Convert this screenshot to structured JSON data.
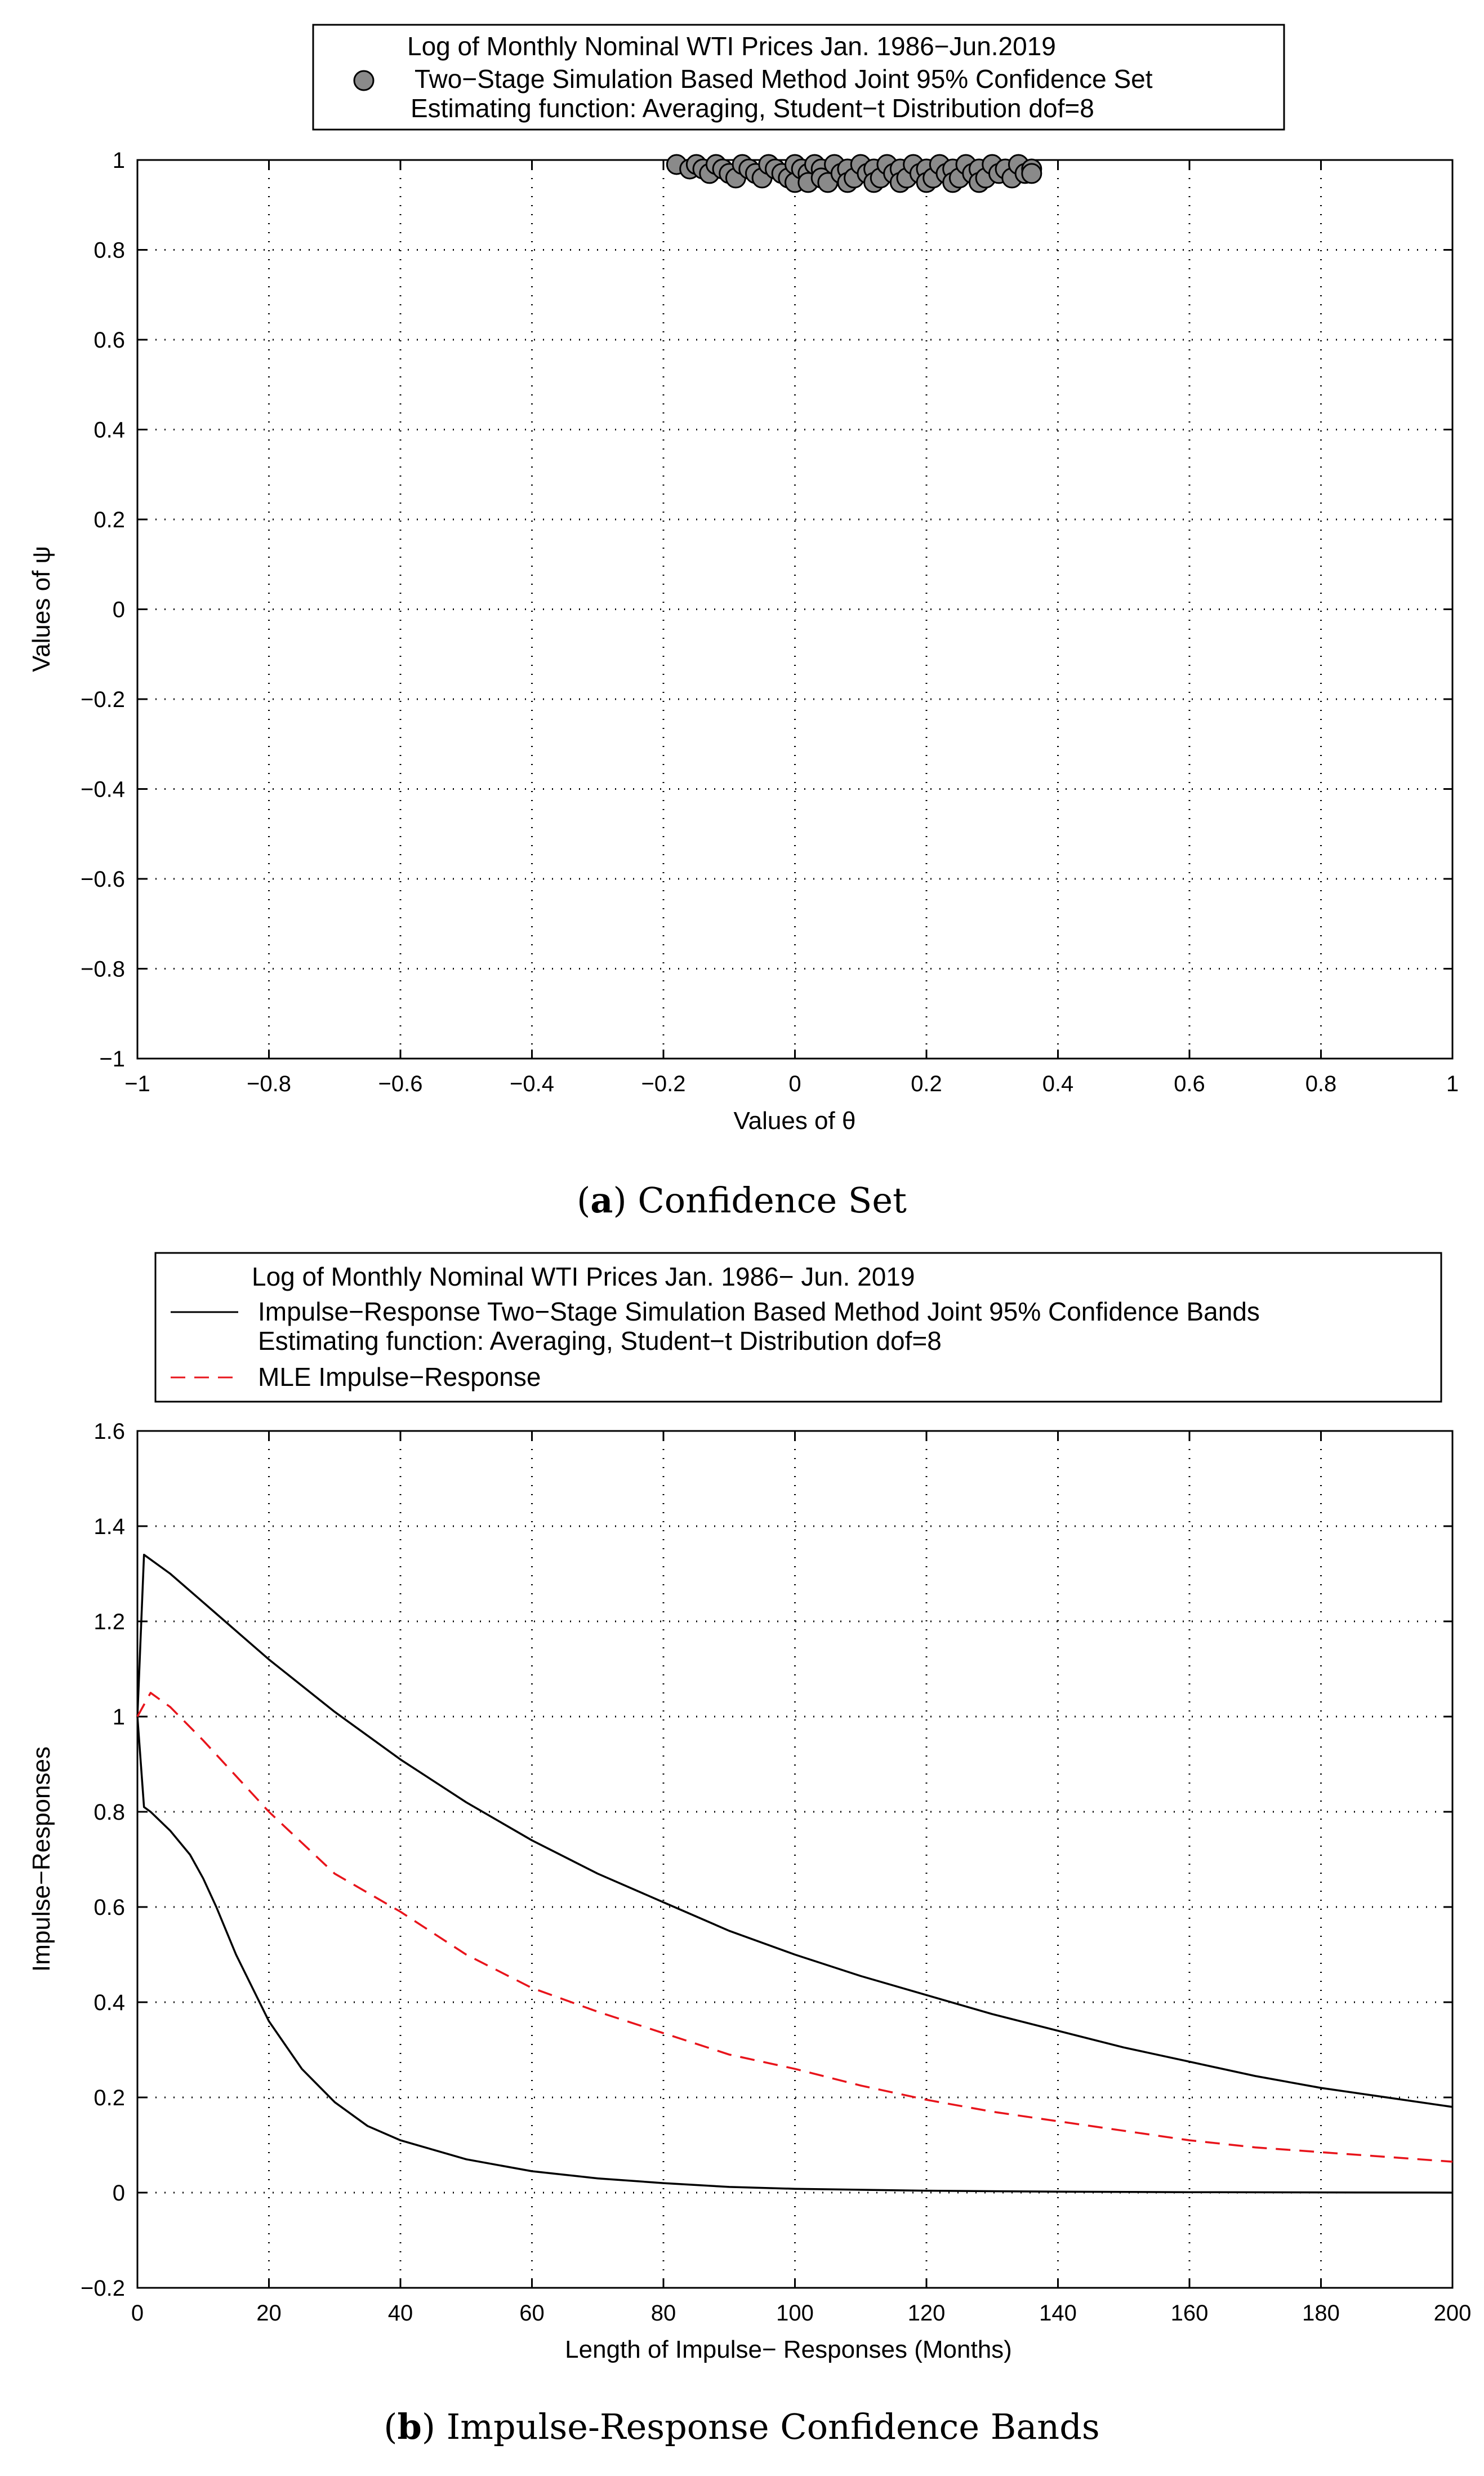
{
  "chart_data": [
    {
      "type": "scatter",
      "title": "Log of Monthly Nominal WTI Prices Jan. 1986−Jun.2019",
      "legend": [
        "Two−Stage Simulation Based Method Joint 95% Confidence Set",
        "Estimating function: Averaging, Student−t Distribution dof=8"
      ],
      "legend_position": "top",
      "xlabel": "Values of θ",
      "ylabel": "Values of ψ",
      "xlim": [
        -1,
        1
      ],
      "ylim": [
        -1,
        1
      ],
      "xticks": [
        -1,
        -0.8,
        -0.6,
        -0.4,
        -0.2,
        0,
        0.2,
        0.4,
        0.6,
        0.8,
        1
      ],
      "yticks": [
        -1,
        -0.8,
        -0.6,
        -0.4,
        -0.2,
        0,
        0.2,
        0.4,
        0.6,
        0.8,
        1
      ],
      "xtick_labels": [
        "−1",
        "−0.8",
        "−0.6",
        "−0.4",
        "−0.2",
        "0",
        "0.2",
        "0.4",
        "0.6",
        "0.8",
        "1"
      ],
      "ytick_labels": [
        "−1",
        "−0.8",
        "−0.6",
        "−0.4",
        "−0.2",
        "0",
        "0.2",
        "0.4",
        "0.6",
        "0.8",
        "1"
      ],
      "grid": true,
      "points": [
        [
          -0.18,
          0.99
        ],
        [
          -0.16,
          0.98
        ],
        [
          -0.15,
          0.99
        ],
        [
          -0.14,
          0.98
        ],
        [
          -0.13,
          0.97
        ],
        [
          -0.12,
          0.99
        ],
        [
          -0.11,
          0.98
        ],
        [
          -0.1,
          0.97
        ],
        [
          -0.09,
          0.96
        ],
        [
          -0.08,
          0.99
        ],
        [
          -0.07,
          0.98
        ],
        [
          -0.06,
          0.97
        ],
        [
          -0.05,
          0.96
        ],
        [
          -0.04,
          0.99
        ],
        [
          -0.03,
          0.98
        ],
        [
          -0.02,
          0.97
        ],
        [
          -0.01,
          0.96
        ],
        [
          0.0,
          0.99
        ],
        [
          0.0,
          0.95
        ],
        [
          0.01,
          0.98
        ],
        [
          0.02,
          0.97
        ],
        [
          0.02,
          0.95
        ],
        [
          0.03,
          0.99
        ],
        [
          0.04,
          0.98
        ],
        [
          0.04,
          0.96
        ],
        [
          0.05,
          0.95
        ],
        [
          0.06,
          0.99
        ],
        [
          0.07,
          0.97
        ],
        [
          0.08,
          0.98
        ],
        [
          0.08,
          0.95
        ],
        [
          0.09,
          0.96
        ],
        [
          0.1,
          0.99
        ],
        [
          0.11,
          0.97
        ],
        [
          0.12,
          0.98
        ],
        [
          0.12,
          0.95
        ],
        [
          0.13,
          0.96
        ],
        [
          0.14,
          0.99
        ],
        [
          0.15,
          0.97
        ],
        [
          0.16,
          0.98
        ],
        [
          0.16,
          0.95
        ],
        [
          0.17,
          0.96
        ],
        [
          0.18,
          0.99
        ],
        [
          0.19,
          0.97
        ],
        [
          0.2,
          0.98
        ],
        [
          0.2,
          0.95
        ],
        [
          0.21,
          0.96
        ],
        [
          0.22,
          0.99
        ],
        [
          0.23,
          0.97
        ],
        [
          0.24,
          0.98
        ],
        [
          0.24,
          0.95
        ],
        [
          0.25,
          0.96
        ],
        [
          0.26,
          0.99
        ],
        [
          0.27,
          0.97
        ],
        [
          0.28,
          0.98
        ],
        [
          0.28,
          0.95
        ],
        [
          0.29,
          0.96
        ],
        [
          0.3,
          0.99
        ],
        [
          0.31,
          0.97
        ],
        [
          0.32,
          0.98
        ],
        [
          0.33,
          0.96
        ],
        [
          0.34,
          0.99
        ],
        [
          0.35,
          0.97
        ],
        [
          0.36,
          0.98
        ],
        [
          0.36,
          0.97
        ]
      ],
      "caption_letter": "a",
      "caption": "Confidence Set"
    },
    {
      "type": "line",
      "title": "Log of Monthly Nominal WTI Prices Jan. 1986− Jun. 2019",
      "legend": [
        "Impulse−Response Two−Stage Simulation Based Method Joint 95% Confidence Bands",
        "Estimating function: Averaging, Student−t Distribution dof=8",
        "MLE Impulse−Response"
      ],
      "legend_position": "top",
      "xlabel": "Length of Impulse− Responses (Months)",
      "ylabel": "Impulse−Responses",
      "xlim": [
        0,
        200
      ],
      "ylim": [
        -0.2,
        1.6
      ],
      "xticks": [
        0,
        20,
        40,
        60,
        80,
        100,
        120,
        140,
        160,
        180,
        200
      ],
      "yticks": [
        -0.2,
        0,
        0.2,
        0.4,
        0.6,
        0.8,
        1,
        1.2,
        1.4,
        1.6
      ],
      "xtick_labels": [
        "0",
        "20",
        "40",
        "60",
        "80",
        "100",
        "120",
        "140",
        "160",
        "180",
        "200"
      ],
      "ytick_labels": [
        "−0.2",
        "0",
        "0.2",
        "0.4",
        "0.6",
        "0.8",
        "1",
        "1.2",
        "1.4",
        "1.6"
      ],
      "grid": true,
      "series": [
        {
          "name": "Upper confidence band",
          "style": "solid",
          "color": "#000000",
          "x": [
            0,
            1,
            5,
            10,
            20,
            30,
            40,
            50,
            60,
            70,
            80,
            90,
            100,
            110,
            120,
            130,
            140,
            150,
            160,
            170,
            180,
            190,
            200
          ],
          "y": [
            1.0,
            1.34,
            1.3,
            1.24,
            1.12,
            1.01,
            0.91,
            0.82,
            0.74,
            0.67,
            0.61,
            0.55,
            0.5,
            0.455,
            0.415,
            0.375,
            0.34,
            0.305,
            0.275,
            0.245,
            0.22,
            0.2,
            0.18
          ]
        },
        {
          "name": "Lower confidence band",
          "style": "solid",
          "color": "#000000",
          "x": [
            0,
            1,
            2,
            5,
            8,
            10,
            12,
            15,
            20,
            25,
            30,
            35,
            40,
            50,
            60,
            70,
            80,
            90,
            100,
            120,
            140,
            160,
            180,
            200
          ],
          "y": [
            1.0,
            0.81,
            0.8,
            0.76,
            0.71,
            0.66,
            0.6,
            0.5,
            0.36,
            0.26,
            0.19,
            0.14,
            0.11,
            0.07,
            0.045,
            0.03,
            0.02,
            0.012,
            0.008,
            0.004,
            0.002,
            0.001,
            0.0005,
            0.0
          ]
        },
        {
          "name": "MLE Impulse−Response",
          "style": "dashed",
          "color": "#e8141b",
          "x": [
            0,
            2,
            5,
            10,
            20,
            30,
            40,
            50,
            60,
            70,
            80,
            90,
            100,
            110,
            120,
            130,
            140,
            150,
            160,
            170,
            180,
            190,
            200
          ],
          "y": [
            1.0,
            1.05,
            1.02,
            0.95,
            0.8,
            0.67,
            0.59,
            0.5,
            0.43,
            0.38,
            0.335,
            0.29,
            0.26,
            0.225,
            0.195,
            0.17,
            0.15,
            0.13,
            0.11,
            0.095,
            0.085,
            0.075,
            0.065
          ]
        }
      ],
      "caption_letter": "b",
      "caption": "Impulse-Response Confidence Bands"
    }
  ]
}
